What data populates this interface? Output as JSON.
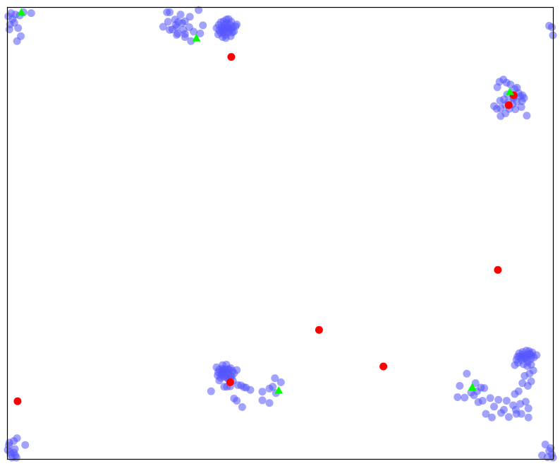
{
  "chart_data": {
    "type": "scatter",
    "title": "",
    "xlabel": "",
    "ylabel": "",
    "xlim": [
      0,
      1
    ],
    "ylim": [
      0,
      1
    ],
    "axes_ticks": false,
    "grid": false,
    "legend": false,
    "series": [
      {
        "marker": "circle",
        "color": "#5555ff",
        "opacity": 0.55,
        "points": [
          [
            0.001,
            0.981
          ],
          [
            0.004,
            0.963
          ],
          [
            0.006,
            0.988
          ],
          [
            0.009,
            0.975
          ],
          [
            0.014,
            0.985
          ],
          [
            0.019,
            0.955
          ],
          [
            0.022,
            0.983
          ],
          [
            0.029,
            0.99
          ],
          [
            0.012,
            0.967
          ],
          [
            0.024,
            0.937
          ],
          [
            0.017,
            0.926
          ],
          [
            0.003,
            0.952
          ],
          [
            0.043,
            0.988
          ],
          [
            0.292,
            0.99
          ],
          [
            0.297,
            0.99
          ],
          [
            0.317,
            0.985
          ],
          [
            0.334,
            0.98
          ],
          [
            0.35,
            0.995
          ],
          [
            0.307,
            0.974
          ],
          [
            0.32,
            0.966
          ],
          [
            0.333,
            0.957
          ],
          [
            0.297,
            0.951
          ],
          [
            0.312,
            0.943
          ],
          [
            0.325,
            0.935
          ],
          [
            0.31,
            0.957
          ],
          [
            0.285,
            0.958
          ],
          [
            0.294,
            0.969
          ],
          [
            0.341,
            0.947
          ],
          [
            0.353,
            0.943
          ],
          [
            0.358,
            0.961
          ],
          [
            0.325,
            0.97
          ],
          [
            0.308,
            0.962
          ],
          [
            0.302,
            0.952
          ],
          [
            0.336,
            0.926
          ],
          [
            0.31,
            0.94
          ],
          [
            0.313,
            0.969
          ],
          [
            0.325,
            0.942
          ],
          [
            0.322,
            0.951
          ],
          [
            0.387,
            0.962
          ],
          [
            0.392,
            0.957
          ],
          [
            0.397,
            0.953
          ],
          [
            0.402,
            0.966
          ],
          [
            0.388,
            0.95
          ],
          [
            0.395,
            0.945
          ],
          [
            0.4,
            0.948
          ],
          [
            0.405,
            0.945
          ],
          [
            0.41,
            0.952
          ],
          [
            0.391,
            0.968
          ],
          [
            0.398,
            0.962
          ],
          [
            0.403,
            0.958
          ],
          [
            0.408,
            0.962
          ],
          [
            0.413,
            0.958
          ],
          [
            0.39,
            0.945
          ],
          [
            0.396,
            0.97
          ],
          [
            0.401,
            0.974
          ],
          [
            0.407,
            0.952
          ],
          [
            0.412,
            0.945
          ],
          [
            0.418,
            0.959
          ],
          [
            0.383,
            0.955
          ],
          [
            0.394,
            0.935
          ],
          [
            0.399,
            0.939
          ],
          [
            0.405,
            0.975
          ],
          [
            0.409,
            0.937
          ],
          [
            0.402,
            0.956
          ],
          [
            0.396,
            0.956
          ],
          [
            0.394,
            0.951
          ],
          [
            0.41,
            0.969
          ],
          [
            0.415,
            0.948
          ],
          [
            0.42,
            0.963
          ],
          [
            0.386,
            0.941
          ],
          [
            0.4,
            0.933
          ],
          [
            0.998,
            0.957
          ],
          [
            1.0,
            0.939
          ],
          [
            0.993,
            0.96
          ],
          [
            0.898,
            0.824
          ],
          [
            0.902,
            0.836
          ],
          [
            0.909,
            0.841
          ],
          [
            0.915,
            0.834
          ],
          [
            0.922,
            0.83
          ],
          [
            0.93,
            0.82
          ],
          [
            0.937,
            0.811
          ],
          [
            0.944,
            0.806
          ],
          [
            0.947,
            0.8
          ],
          [
            0.928,
            0.8
          ],
          [
            0.934,
            0.792
          ],
          [
            0.942,
            0.78
          ],
          [
            0.918,
            0.791
          ],
          [
            0.91,
            0.797
          ],
          [
            0.903,
            0.794
          ],
          [
            0.913,
            0.784
          ],
          [
            0.92,
            0.776
          ],
          [
            0.926,
            0.786
          ],
          [
            0.931,
            0.775
          ],
          [
            0.913,
            0.766
          ],
          [
            0.919,
            0.784
          ],
          [
            0.904,
            0.777
          ],
          [
            0.897,
            0.776
          ],
          [
            0.904,
            0.76
          ],
          [
            0.892,
            0.782
          ],
          [
            0.94,
            0.804
          ],
          [
            0.934,
            0.823
          ],
          [
            0.916,
            0.808
          ],
          [
            0.927,
            0.802
          ],
          [
            0.952,
            0.761
          ],
          [
            0.943,
            0.793
          ],
          [
            0.93,
            0.208
          ],
          [
            0.933,
            0.22
          ],
          [
            0.938,
            0.227
          ],
          [
            0.944,
            0.231
          ],
          [
            0.95,
            0.23
          ],
          [
            0.956,
            0.232
          ],
          [
            0.961,
            0.229
          ],
          [
            0.948,
            0.223
          ],
          [
            0.942,
            0.219
          ],
          [
            0.936,
            0.213
          ],
          [
            0.946,
            0.21
          ],
          [
            0.954,
            0.215
          ],
          [
            0.959,
            0.221
          ],
          [
            0.965,
            0.225
          ],
          [
            0.97,
            0.23
          ],
          [
            0.953,
            0.206
          ],
          [
            0.96,
            0.209
          ],
          [
            0.944,
            0.237
          ],
          [
            0.938,
            0.234
          ],
          [
            0.951,
            0.24
          ],
          [
            0.956,
            0.239
          ],
          [
            0.962,
            0.236
          ],
          [
            0.935,
            0.227
          ],
          [
            0.942,
            0.225
          ],
          [
            0.947,
            0.226
          ],
          [
            0.952,
            0.223
          ],
          [
            0.958,
            0.233
          ],
          [
            0.948,
            0.184
          ],
          [
            0.957,
            0.189
          ],
          [
            0.964,
            0.196
          ],
          [
            0.96,
            0.172
          ],
          [
            0.954,
            0.162
          ],
          [
            0.944,
            0.168
          ],
          [
            0.93,
            0.144
          ],
          [
            0.937,
            0.15
          ],
          [
            0.927,
            0.119
          ],
          [
            0.932,
            0.109
          ],
          [
            0.94,
            0.122
          ],
          [
            0.95,
            0.127
          ],
          [
            0.955,
            0.112
          ],
          [
            0.933,
            0.1
          ],
          [
            0.919,
            0.093
          ],
          [
            0.91,
            0.109
          ],
          [
            0.905,
            0.102
          ],
          [
            0.892,
            0.116
          ],
          [
            0.888,
            0.092
          ],
          [
            0.877,
            0.1
          ],
          [
            0.871,
            0.129
          ],
          [
            0.885,
            0.135
          ],
          [
            0.9,
            0.131
          ],
          [
            0.915,
            0.129
          ],
          [
            0.942,
            0.1
          ],
          [
            0.955,
            0.092
          ],
          [
            0.842,
            0.189
          ],
          [
            0.858,
            0.168
          ],
          [
            0.861,
            0.15
          ],
          [
            0.85,
            0.147
          ],
          [
            0.829,
            0.162
          ],
          [
            0.825,
            0.137
          ],
          [
            0.838,
            0.136
          ],
          [
            0.855,
            0.141
          ],
          [
            0.868,
            0.158
          ],
          [
            0.874,
            0.157
          ],
          [
            0.863,
            0.126
          ],
          [
            0.383,
            0.203
          ],
          [
            0.388,
            0.198
          ],
          [
            0.394,
            0.195
          ],
          [
            0.4,
            0.193
          ],
          [
            0.406,
            0.198
          ],
          [
            0.412,
            0.195
          ],
          [
            0.385,
            0.185
          ],
          [
            0.39,
            0.18
          ],
          [
            0.396,
            0.182
          ],
          [
            0.402,
            0.18
          ],
          [
            0.408,
            0.185
          ],
          [
            0.391,
            0.19
          ],
          [
            0.397,
            0.189
          ],
          [
            0.403,
            0.19
          ],
          [
            0.409,
            0.201
          ],
          [
            0.394,
            0.208
          ],
          [
            0.401,
            0.209
          ],
          [
            0.386,
            0.192
          ],
          [
            0.415,
            0.19
          ],
          [
            0.399,
            0.185
          ],
          [
            0.404,
            0.199
          ],
          [
            0.393,
            0.2
          ],
          [
            0.411,
            0.183
          ],
          [
            0.388,
            0.174
          ],
          [
            0.405,
            0.176
          ],
          [
            0.398,
            0.199
          ],
          [
            0.396,
            0.197
          ],
          [
            0.392,
            0.186
          ],
          [
            0.408,
            0.178
          ],
          [
            0.42,
            0.197
          ],
          [
            0.413,
            0.173
          ],
          [
            0.428,
            0.163
          ],
          [
            0.437,
            0.158
          ],
          [
            0.445,
            0.153
          ],
          [
            0.433,
            0.159
          ],
          [
            0.467,
            0.149
          ],
          [
            0.48,
            0.156
          ],
          [
            0.467,
            0.13
          ],
          [
            0.486,
            0.16
          ],
          [
            0.49,
            0.179
          ],
          [
            0.501,
            0.17
          ],
          [
            0.492,
            0.146
          ],
          [
            0.48,
            0.124
          ],
          [
            0.422,
            0.164
          ],
          [
            0.408,
            0.161
          ],
          [
            0.402,
            0.16
          ],
          [
            0.415,
            0.134
          ],
          [
            0.42,
            0.129
          ],
          [
            0.43,
            0.115
          ],
          [
            0.373,
            0.15
          ],
          [
            0.397,
            0.16
          ],
          [
            0.002,
            0.03
          ],
          [
            0.006,
            0.01
          ],
          [
            0.011,
            0.04
          ],
          [
            0.013,
            0.022
          ],
          [
            0.004,
            0.015
          ],
          [
            0.008,
            0.003
          ],
          [
            0.016,
            0.003
          ],
          [
            0.017,
            0.046
          ],
          [
            0.003,
            0.036
          ],
          [
            0.032,
            0.031
          ],
          [
            0.011,
            0.014
          ],
          [
            0.0,
            0.02
          ],
          [
            0.014,
            0.008
          ],
          [
            0.986,
            0.032
          ],
          [
            0.993,
            0.018
          ],
          [
            0.998,
            0.01
          ],
          [
            0.98,
            0.008
          ],
          [
            0.996,
            0.024
          ],
          [
            0.99,
            0.004
          ],
          [
            1.0,
            0.003
          ]
        ]
      },
      {
        "marker": "circle",
        "color": "#ff0000",
        "opacity": 1.0,
        "points": [
          [
            0.41,
            0.891
          ],
          [
            0.928,
            0.806
          ],
          [
            0.919,
            0.784
          ],
          [
            0.899,
            0.419
          ],
          [
            0.571,
            0.286
          ],
          [
            0.689,
            0.205
          ],
          [
            0.408,
            0.17
          ],
          [
            0.018,
            0.128
          ]
        ]
      },
      {
        "marker": "triangle",
        "color": "#00ff00",
        "opacity": 1.0,
        "points": [
          [
            0.025,
            0.99
          ],
          [
            0.346,
            0.933
          ],
          [
            0.921,
            0.814
          ],
          [
            0.497,
            0.152
          ],
          [
            0.852,
            0.159
          ]
        ]
      }
    ]
  }
}
